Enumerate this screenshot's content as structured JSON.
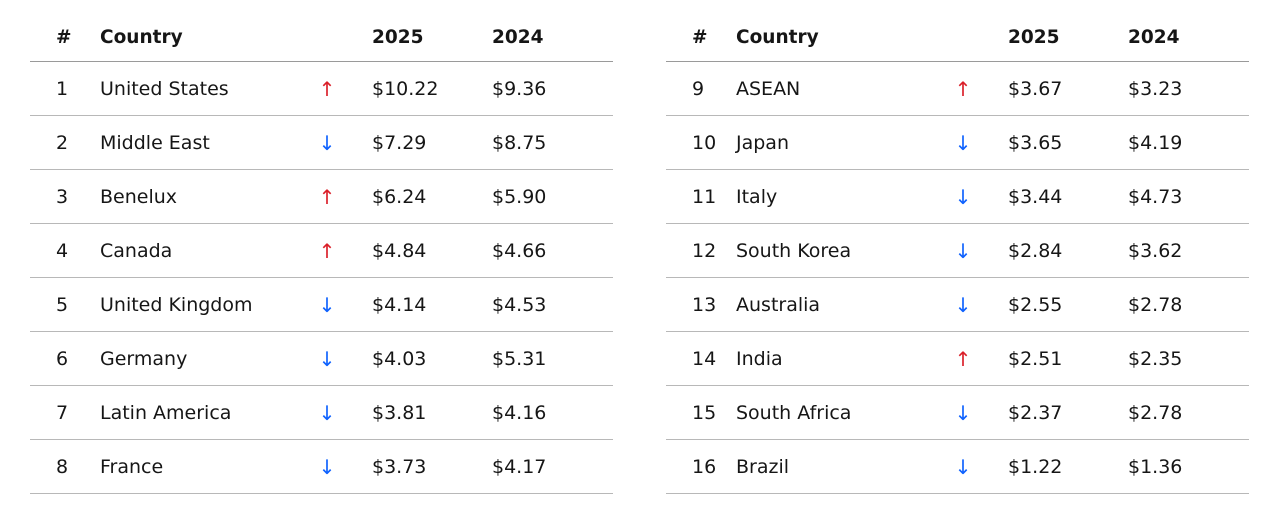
{
  "colors": {
    "up": "#da1e28",
    "down": "#0f62fe",
    "text": "#161616",
    "rule": "#b8b8b8"
  },
  "icons": {
    "up": "↑",
    "down": "↓"
  },
  "header": {
    "rank": "#",
    "country": "Country",
    "y2025": "2025",
    "y2024": "2024"
  },
  "tables": [
    {
      "rows": [
        {
          "rank": "1",
          "country": "United States",
          "trend": "up",
          "v2025": "$10.22",
          "v2024": "$9.36"
        },
        {
          "rank": "2",
          "country": "Middle East",
          "trend": "down",
          "v2025": "$7.29",
          "v2024": "$8.75"
        },
        {
          "rank": "3",
          "country": "Benelux",
          "trend": "up",
          "v2025": "$6.24",
          "v2024": "$5.90"
        },
        {
          "rank": "4",
          "country": "Canada",
          "trend": "up",
          "v2025": "$4.84",
          "v2024": "$4.66"
        },
        {
          "rank": "5",
          "country": "United Kingdom",
          "trend": "down",
          "v2025": "$4.14",
          "v2024": "$4.53"
        },
        {
          "rank": "6",
          "country": "Germany",
          "trend": "down",
          "v2025": "$4.03",
          "v2024": "$5.31"
        },
        {
          "rank": "7",
          "country": "Latin America",
          "trend": "down",
          "v2025": "$3.81",
          "v2024": "$4.16"
        },
        {
          "rank": "8",
          "country": "France",
          "trend": "down",
          "v2025": "$3.73",
          "v2024": "$4.17"
        }
      ]
    },
    {
      "rows": [
        {
          "rank": "9",
          "country": "ASEAN",
          "trend": "up",
          "v2025": "$3.67",
          "v2024": "$3.23"
        },
        {
          "rank": "10",
          "country": "Japan",
          "trend": "down",
          "v2025": "$3.65",
          "v2024": "$4.19"
        },
        {
          "rank": "11",
          "country": "Italy",
          "trend": "down",
          "v2025": "$3.44",
          "v2024": "$4.73"
        },
        {
          "rank": "12",
          "country": "South Korea",
          "trend": "down",
          "v2025": "$2.84",
          "v2024": "$3.62"
        },
        {
          "rank": "13",
          "country": "Australia",
          "trend": "down",
          "v2025": "$2.55",
          "v2024": "$2.78"
        },
        {
          "rank": "14",
          "country": "India",
          "trend": "up",
          "v2025": "$2.51",
          "v2024": "$2.35"
        },
        {
          "rank": "15",
          "country": "South Africa",
          "trend": "down",
          "v2025": "$2.37",
          "v2024": "$2.78"
        },
        {
          "rank": "16",
          "country": "Brazil",
          "trend": "down",
          "v2025": "$1.22",
          "v2024": "$1.36"
        }
      ]
    }
  ],
  "chart_data": {
    "type": "table",
    "columns": [
      "#",
      "Country",
      "2025",
      "2024"
    ],
    "rows": [
      [
        "1",
        "United States",
        "$10.22",
        "$9.36"
      ],
      [
        "2",
        "Middle East",
        "$7.29",
        "$8.75"
      ],
      [
        "3",
        "Benelux",
        "$6.24",
        "$5.90"
      ],
      [
        "4",
        "Canada",
        "$4.84",
        "$4.66"
      ],
      [
        "5",
        "United Kingdom",
        "$4.14",
        "$4.53"
      ],
      [
        "6",
        "Germany",
        "$4.03",
        "$5.31"
      ],
      [
        "7",
        "Latin America",
        "$3.81",
        "$4.16"
      ],
      [
        "8",
        "France",
        "$3.73",
        "$4.17"
      ],
      [
        "9",
        "ASEAN",
        "$3.67",
        "$3.23"
      ],
      [
        "10",
        "Japan",
        "$3.65",
        "$4.19"
      ],
      [
        "11",
        "Italy",
        "$3.44",
        "$4.73"
      ],
      [
        "12",
        "South Korea",
        "$2.84",
        "$3.62"
      ],
      [
        "13",
        "Australia",
        "$2.55",
        "$2.78"
      ],
      [
        "14",
        "India",
        "$2.51",
        "$2.35"
      ],
      [
        "15",
        "South Africa",
        "$2.37",
        "$2.78"
      ],
      [
        "16",
        "Brazil",
        "$1.22",
        "$1.36"
      ]
    ]
  }
}
